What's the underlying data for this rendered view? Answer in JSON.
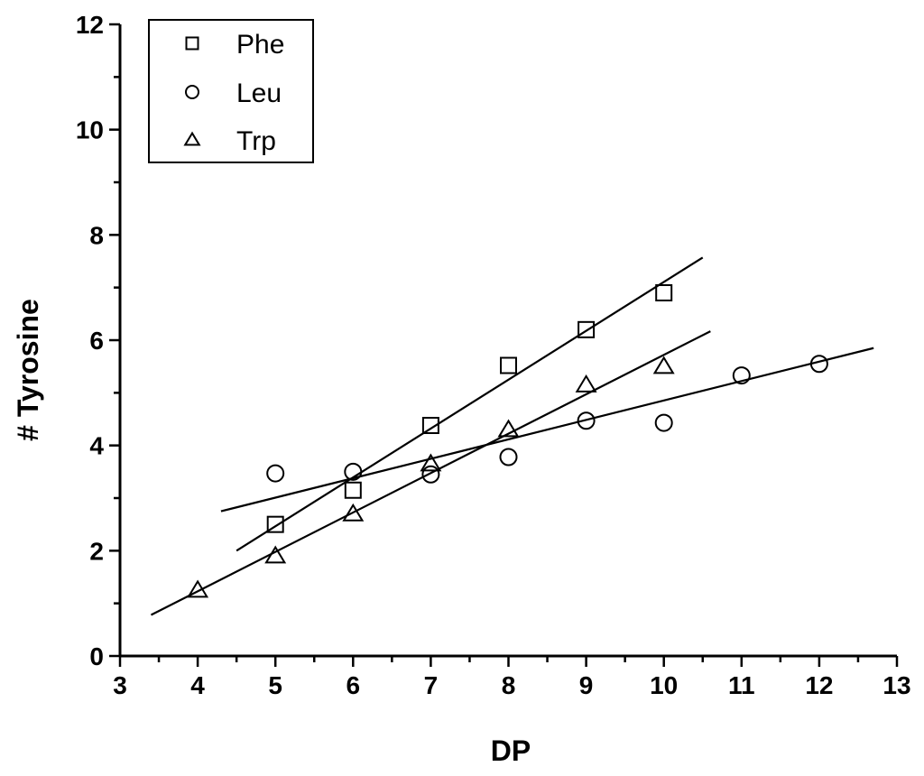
{
  "chart_data": {
    "type": "scatter",
    "title": "",
    "xlabel": "DP",
    "ylabel": "# Tyrosine",
    "xlim": [
      3,
      13
    ],
    "ylim": [
      0,
      12
    ],
    "x_ticks": [
      3,
      4,
      5,
      6,
      7,
      8,
      9,
      10,
      11,
      12,
      13
    ],
    "y_ticks": [
      0,
      2,
      4,
      6,
      8,
      10,
      12
    ],
    "grid": false,
    "legend_position": "top-left",
    "series": [
      {
        "name": "Phe",
        "marker": "square",
        "points": [
          [
            5,
            2.5
          ],
          [
            6,
            3.15
          ],
          [
            7,
            4.38
          ],
          [
            8,
            5.52
          ],
          [
            9,
            6.2
          ],
          [
            10,
            6.9
          ]
        ],
        "fit_line": [
          [
            4.5,
            2.0
          ],
          [
            10.5,
            7.57
          ]
        ]
      },
      {
        "name": "Leu",
        "marker": "circle",
        "points": [
          [
            5,
            3.47
          ],
          [
            6,
            3.5
          ],
          [
            7,
            3.45
          ],
          [
            8,
            3.78
          ],
          [
            9,
            4.47
          ],
          [
            10,
            4.43
          ],
          [
            11,
            5.33
          ],
          [
            12,
            5.55
          ]
        ],
        "fit_line": [
          [
            4.3,
            2.75
          ],
          [
            12.7,
            5.85
          ]
        ]
      },
      {
        "name": "Trp",
        "marker": "triangle",
        "points": [
          [
            4,
            1.25
          ],
          [
            5,
            1.9
          ],
          [
            6,
            2.7
          ],
          [
            7,
            3.65
          ],
          [
            8,
            4.3
          ],
          [
            9,
            5.15
          ],
          [
            10,
            5.5
          ]
        ],
        "fit_line": [
          [
            3.4,
            0.78
          ],
          [
            10.6,
            6.17
          ]
        ]
      }
    ]
  }
}
